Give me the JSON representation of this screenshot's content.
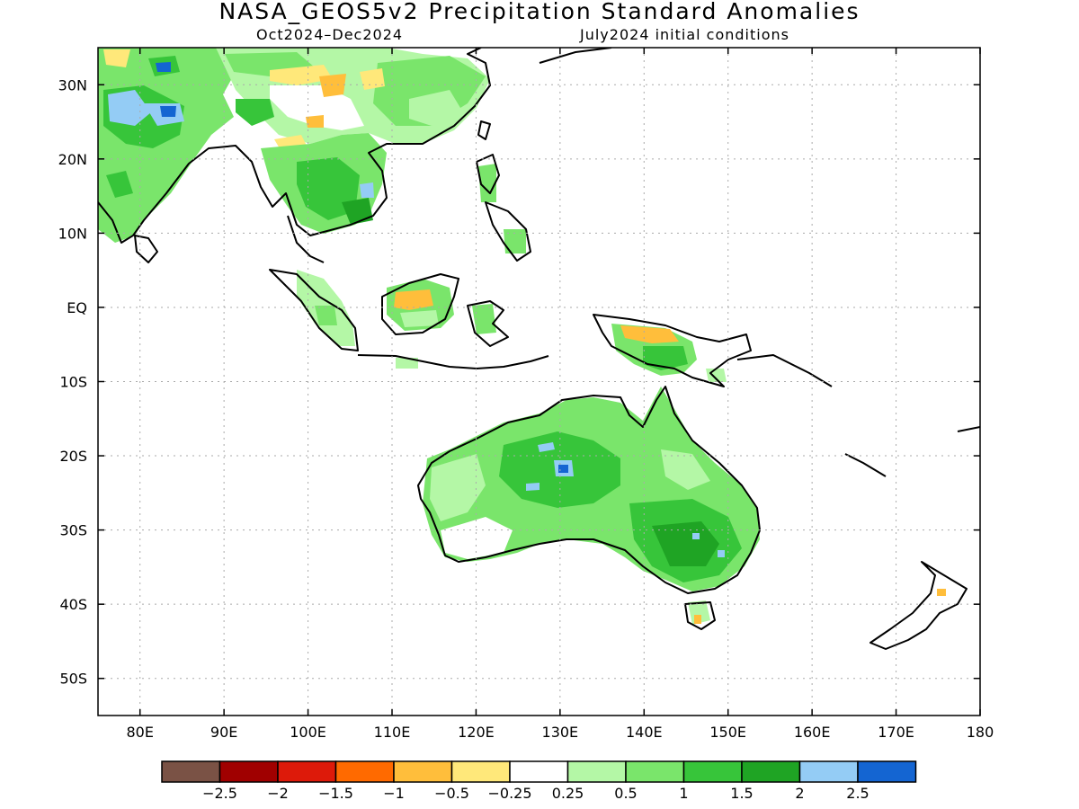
{
  "title": "NASA_GEOS5v2 Precipitation Standard Anomalies",
  "subtitle_left": "Oct2024–Dec2024",
  "subtitle_right": "July2024 initial conditions",
  "map": {
    "lon_range": [
      75,
      180
    ],
    "lat_range": [
      -55,
      35
    ],
    "lat_labels": [
      {
        "lat": 30,
        "label": "30N"
      },
      {
        "lat": 20,
        "label": "20N"
      },
      {
        "lat": 10,
        "label": "10N"
      },
      {
        "lat": 0,
        "label": "EQ"
      },
      {
        "lat": -10,
        "label": "10S"
      },
      {
        "lat": -20,
        "label": "20S"
      },
      {
        "lat": -30,
        "label": "30S"
      },
      {
        "lat": -40,
        "label": "40S"
      },
      {
        "lat": -50,
        "label": "50S"
      }
    ],
    "lon_labels": [
      {
        "lon": 80,
        "label": "80E"
      },
      {
        "lon": 90,
        "label": "90E"
      },
      {
        "lon": 100,
        "label": "100E"
      },
      {
        "lon": 110,
        "label": "110E"
      },
      {
        "lon": 120,
        "label": "120E"
      },
      {
        "lon": 130,
        "label": "130E"
      },
      {
        "lon": 140,
        "label": "140E"
      },
      {
        "lon": 150,
        "label": "150E"
      },
      {
        "lon": 160,
        "label": "160E"
      },
      {
        "lon": 170,
        "label": "170E"
      },
      {
        "lon": 180,
        "label": "180"
      }
    ],
    "grid": "dotted"
  },
  "colorbar": {
    "colors": [
      "#7a5245",
      "#a00000",
      "#dd1a0a",
      "#ff6a00",
      "#ffbe3b",
      "#ffe87a",
      "#ffffff",
      "#b4f7a6",
      "#7ae56b",
      "#37c53a",
      "#1fa424",
      "#94ccf5",
      "#1465d2"
    ],
    "labels": [
      "−2.5",
      "−2",
      "−1.5",
      "−1",
      "−0.5",
      "−0.25",
      "0.25",
      "0.5",
      "1",
      "1.5",
      "2",
      "2.5"
    ]
  }
}
